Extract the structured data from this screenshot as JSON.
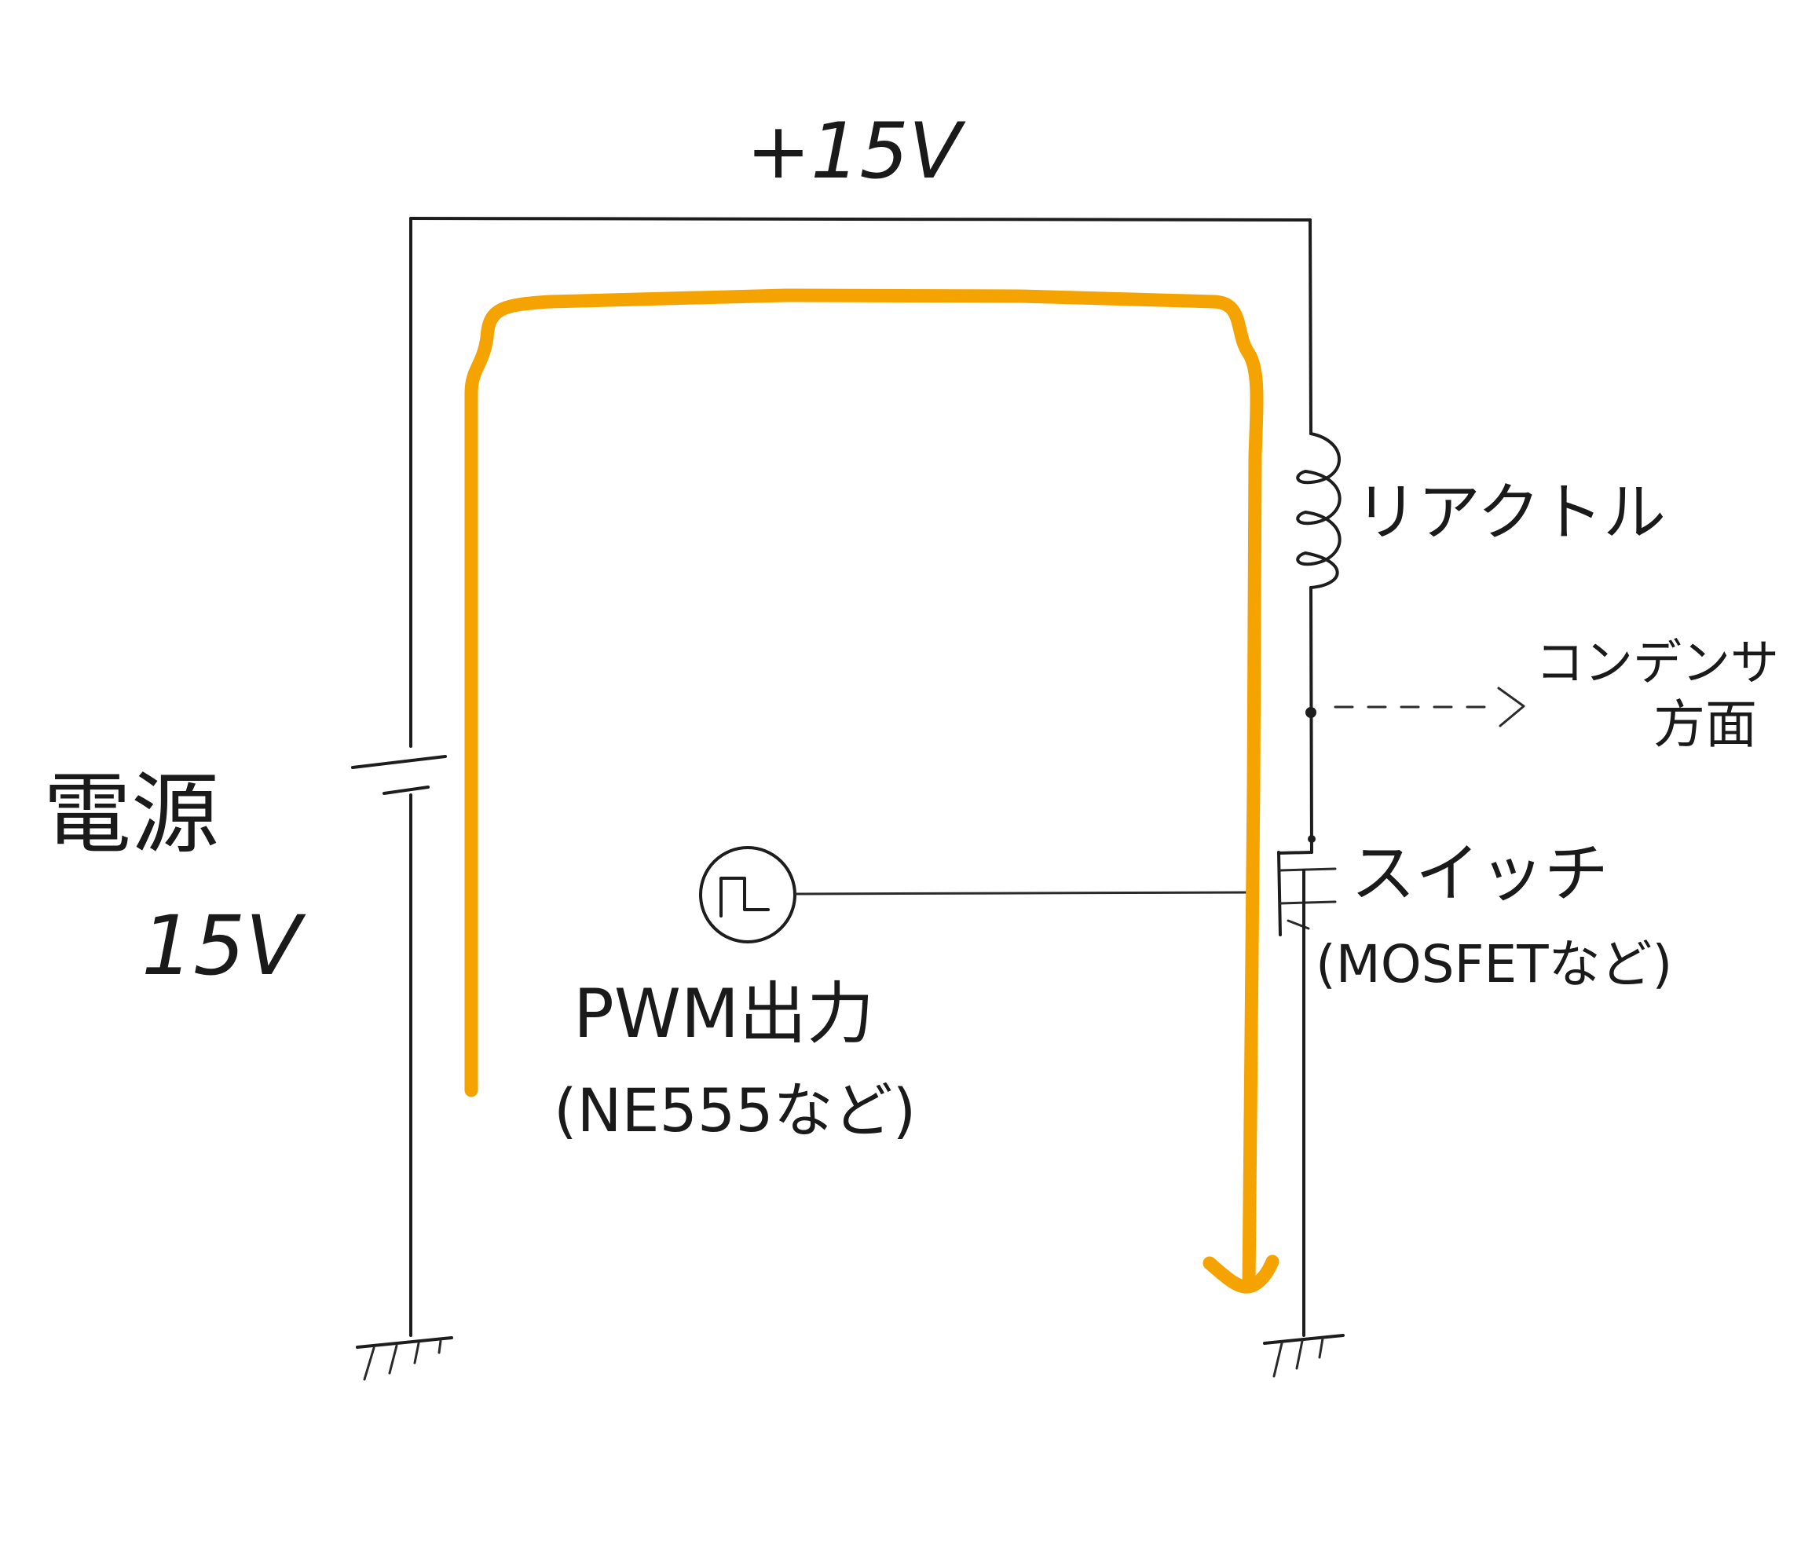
{
  "labels": {
    "supply_rail": "+15V",
    "power_source_name": "電源",
    "power_source_voltage": "15V",
    "reactor": "リアクトル",
    "capacitor_direction_line1": "コンデンサ",
    "capacitor_direction_line2": "方面",
    "switch_name": "スイッチ",
    "switch_example": "(MOSFETなど)",
    "pwm_name": "PWM出力",
    "pwm_example": "(NE555など)"
  },
  "colors": {
    "wire": "#1d1d1d",
    "current_path": "#f5a300",
    "background": "#ffffff"
  },
  "icons": {
    "battery": "battery-symbol-icon",
    "inductor": "inductor-coil-icon",
    "pwm_source": "square-wave-source-icon",
    "switch": "mosfet-switch-icon",
    "ground": "ground-symbol-icon",
    "current_arrow": "current-flow-arrow-icon"
  }
}
